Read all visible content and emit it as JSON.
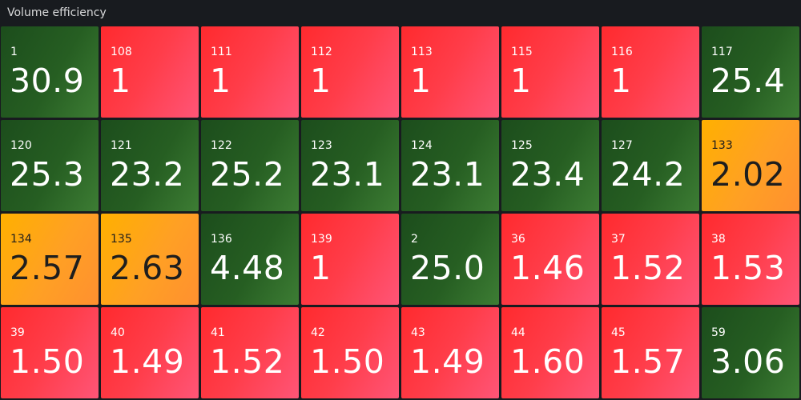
{
  "panel": {
    "title": "Volume efficiency"
  },
  "colors": {
    "background": "#181b1f",
    "green": "#265e22",
    "red": "#ff3d4a",
    "orange": "#ffa024"
  },
  "tiles": [
    {
      "label": "1",
      "value": "30.9",
      "status": "green"
    },
    {
      "label": "108",
      "value": "1",
      "status": "red"
    },
    {
      "label": "111",
      "value": "1",
      "status": "red"
    },
    {
      "label": "112",
      "value": "1",
      "status": "red"
    },
    {
      "label": "113",
      "value": "1",
      "status": "red"
    },
    {
      "label": "115",
      "value": "1",
      "status": "red"
    },
    {
      "label": "116",
      "value": "1",
      "status": "red"
    },
    {
      "label": "117",
      "value": "25.4",
      "status": "green"
    },
    {
      "label": "120",
      "value": "25.3",
      "status": "green"
    },
    {
      "label": "121",
      "value": "23.2",
      "status": "green"
    },
    {
      "label": "122",
      "value": "25.2",
      "status": "green"
    },
    {
      "label": "123",
      "value": "23.1",
      "status": "green"
    },
    {
      "label": "124",
      "value": "23.1",
      "status": "green"
    },
    {
      "label": "125",
      "value": "23.4",
      "status": "green"
    },
    {
      "label": "127",
      "value": "24.2",
      "status": "green"
    },
    {
      "label": "133",
      "value": "2.02",
      "status": "orange"
    },
    {
      "label": "134",
      "value": "2.57",
      "status": "orange"
    },
    {
      "label": "135",
      "value": "2.63",
      "status": "orange"
    },
    {
      "label": "136",
      "value": "4.48",
      "status": "green"
    },
    {
      "label": "139",
      "value": "1",
      "status": "red"
    },
    {
      "label": "2",
      "value": "25.0",
      "status": "green"
    },
    {
      "label": "36",
      "value": "1.46",
      "status": "red"
    },
    {
      "label": "37",
      "value": "1.52",
      "status": "red"
    },
    {
      "label": "38",
      "value": "1.53",
      "status": "red"
    },
    {
      "label": "39",
      "value": "1.50",
      "status": "red"
    },
    {
      "label": "40",
      "value": "1.49",
      "status": "red"
    },
    {
      "label": "41",
      "value": "1.52",
      "status": "red"
    },
    {
      "label": "42",
      "value": "1.50",
      "status": "red"
    },
    {
      "label": "43",
      "value": "1.49",
      "status": "red"
    },
    {
      "label": "44",
      "value": "1.60",
      "status": "red"
    },
    {
      "label": "45",
      "value": "1.57",
      "status": "red"
    },
    {
      "label": "59",
      "value": "3.06",
      "status": "green"
    }
  ]
}
